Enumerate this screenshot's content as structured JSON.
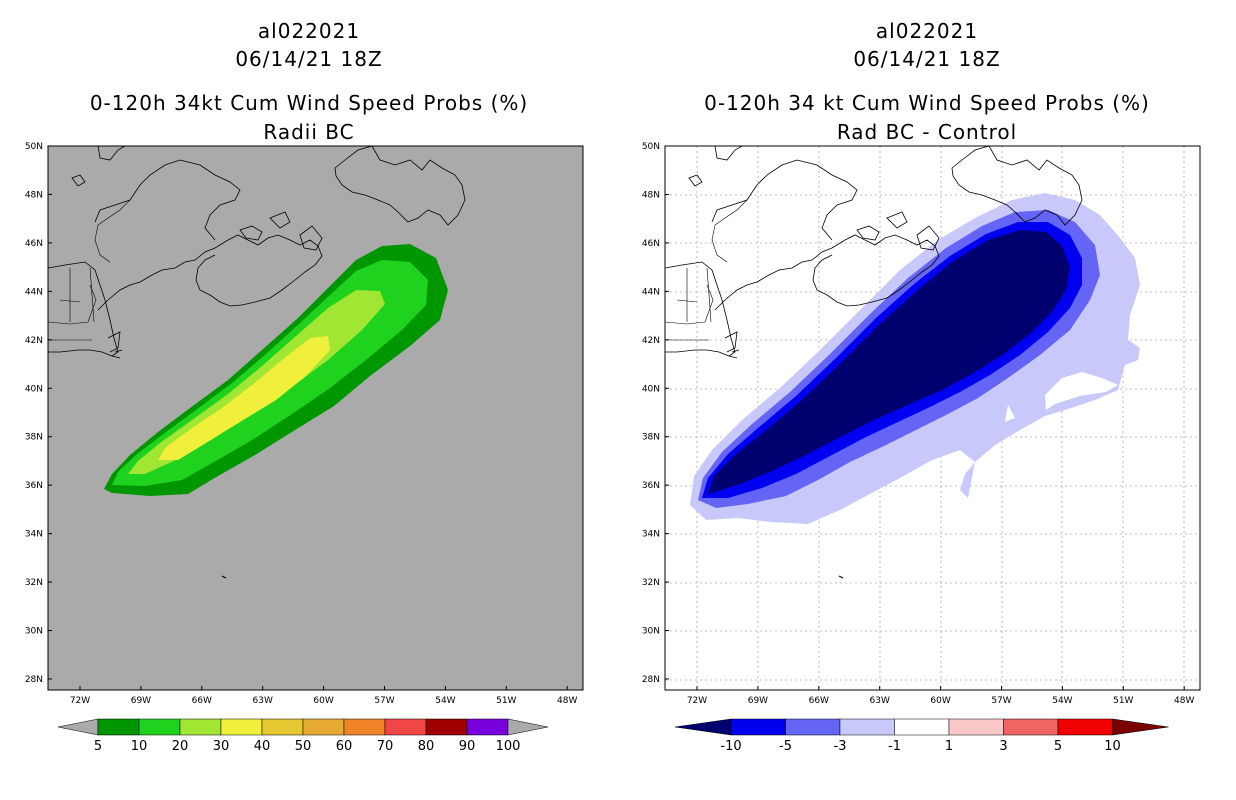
{
  "left_panel": {
    "title_line1": "al022021",
    "title_line2": "06/14/21 18Z",
    "title_line3": "0-120h 34kt Cum Wind Speed Probs (%)",
    "title_line4": "Radii BC",
    "background_color": "#aaaaaa",
    "colorbar": {
      "labels": [
        "5",
        "10",
        "20",
        "30",
        "40",
        "50",
        "60",
        "70",
        "80",
        "90",
        "100"
      ],
      "colors": [
        "#009600",
        "#1ed21e",
        "#a0e632",
        "#f0f03c",
        "#e6c832",
        "#e6aa32",
        "#f08228",
        "#f04646",
        "#a00000",
        "#7800dc"
      ]
    }
  },
  "right_panel": {
    "title_line1": "al022021",
    "title_line2": "06/14/21 18Z",
    "title_line3": "0-120h 34 kt Cum Wind Speed Probs (%)",
    "title_line4": "Rad BC - Control",
    "background_color": "#ffffff",
    "colorbar": {
      "labels": [
        "-10",
        "-5",
        "-3",
        "-1",
        "1",
        "3",
        "5",
        "10"
      ],
      "colors": [
        "#00006e",
        "#0000f0",
        "#6464f5",
        "#c8c8fa",
        "#ffffff",
        "#fac8c8",
        "#f06464",
        "#f00000",
        "#780000"
      ]
    }
  },
  "axes": {
    "lat_labels": [
      "50N",
      "48N",
      "46N",
      "44N",
      "42N",
      "40N",
      "38N",
      "36N",
      "34N",
      "32N",
      "30N",
      "28N"
    ],
    "lon_labels": [
      "72W",
      "69W",
      "66W",
      "63W",
      "60W",
      "57W",
      "54W",
      "51W",
      "48W"
    ]
  }
}
